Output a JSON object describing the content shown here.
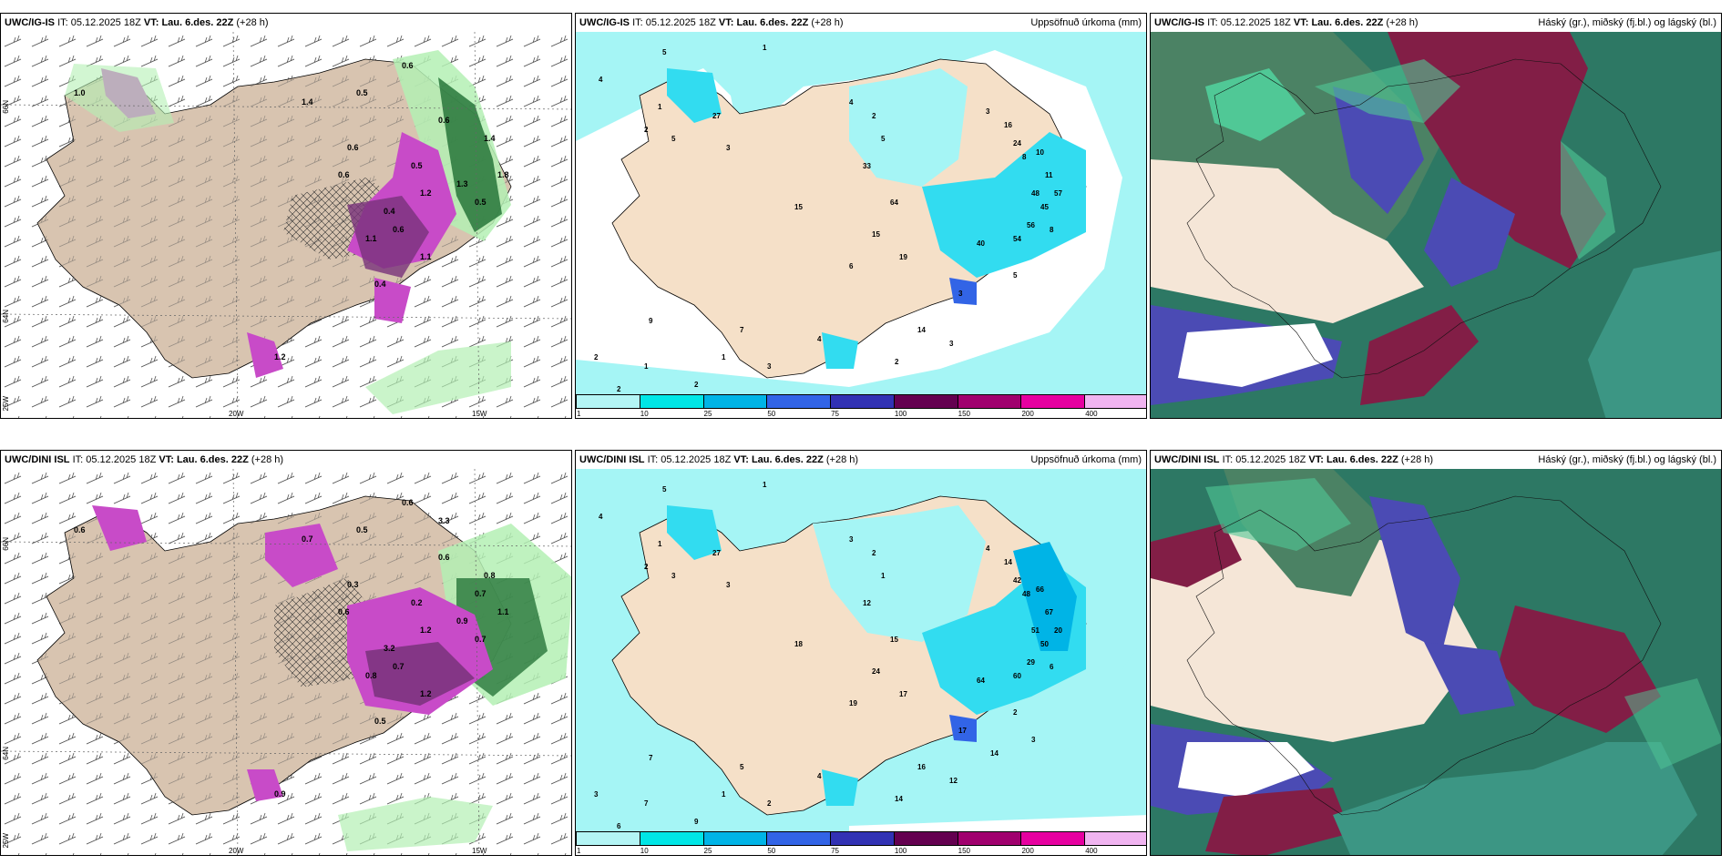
{
  "rows": [
    {
      "model": "UWC/IG-IS",
      "it_label": "IT:",
      "it_value": "05.12.2025 18Z",
      "vt_label": "VT:",
      "vt_value": "Lau. 6.des. 22Z",
      "lead": "(+28 h)",
      "precip_values": [
        "1.0",
        "0.6",
        "0.5",
        "0.6",
        "1.4",
        "0.5",
        "0.6",
        "1.2",
        "0.4",
        "1.3",
        "0.5",
        "1.4",
        "1.8",
        "0.6",
        "1.1",
        "0.6",
        "0.4",
        "1.2",
        "1.1"
      ],
      "accum_values": [
        "4",
        "5",
        "1",
        "2",
        "1",
        "27",
        "5",
        "3",
        "4",
        "2",
        "5",
        "3",
        "16",
        "24",
        "8",
        "10",
        "11",
        "48",
        "57",
        "45",
        "56",
        "54",
        "40",
        "64",
        "33",
        "15",
        "6",
        "19",
        "15",
        "7",
        "4",
        "3",
        "1",
        "2",
        "2",
        "1",
        "2",
        "9",
        "8",
        "5",
        "3",
        "14",
        "2",
        "3"
      ]
    },
    {
      "model": "UWC/DINI ISL",
      "it_label": "IT:",
      "it_value": "05.12.2025 18Z",
      "vt_label": "VT:",
      "vt_value": "Lau. 6.des. 22Z",
      "lead": "(+28 h)",
      "precip_values": [
        "0.6",
        "0.6",
        "0.5",
        "0.6",
        "0.7",
        "0.2",
        "0.3",
        "1.2",
        "3.2",
        "0.9",
        "0.7",
        "0.8",
        "1.1",
        "0.6",
        "0.8",
        "0.7",
        "0.5",
        "0.9",
        "1.2",
        "0.7",
        "3.3"
      ],
      "accum_values": [
        "4",
        "5",
        "1",
        "2",
        "1",
        "27",
        "3",
        "3",
        "3",
        "2",
        "1",
        "4",
        "14",
        "42",
        "48",
        "66",
        "67",
        "51",
        "20",
        "50",
        "29",
        "60",
        "64",
        "15",
        "12",
        "24",
        "19",
        "17",
        "18",
        "5",
        "4",
        "2",
        "1",
        "3",
        "6",
        "7",
        "9",
        "7",
        "6",
        "2",
        "17",
        "16",
        "14",
        "12",
        "14",
        "3"
      ]
    }
  ],
  "panel_titles": {
    "precip_accum": "Uppsöfnuð úrkoma (mm)",
    "clouds": "Háský (gr.), miðský (fj.bl.) og lágský (bl.)"
  },
  "clouds_model_label": "UWC/IG-IS",
  "axis_labels": {
    "lat66": "66N",
    "lat64": "64N",
    "lon25": "25W",
    "lon20": "20W",
    "lon15": "15W"
  },
  "colorbar": {
    "ticks": [
      "1",
      "10",
      "25",
      "50",
      "75",
      "100",
      "150",
      "200",
      "400"
    ],
    "colors": [
      "#b4f5f5",
      "#00e6e6",
      "#00b4e6",
      "#3264e6",
      "#3232b4",
      "#640050",
      "#a0006e",
      "#e600a0",
      "#f0b4f0"
    ]
  },
  "colors": {
    "land": "#f5e6d7",
    "land_precip_panel": "#f5e0c8",
    "snow_green_light": "#b4f0b4",
    "snow_green_dark": "#1e6e32",
    "magenta": "#c84bc8",
    "purple": "#78327a",
    "cyan_light": "#a5f5f5",
    "cyan": "#32dcf0",
    "cloud_teal": "#2d7864",
    "cloud_dark_red": "#821e46",
    "cloud_blue": "#4b4bb4",
    "cloud_green": "#50c896"
  }
}
